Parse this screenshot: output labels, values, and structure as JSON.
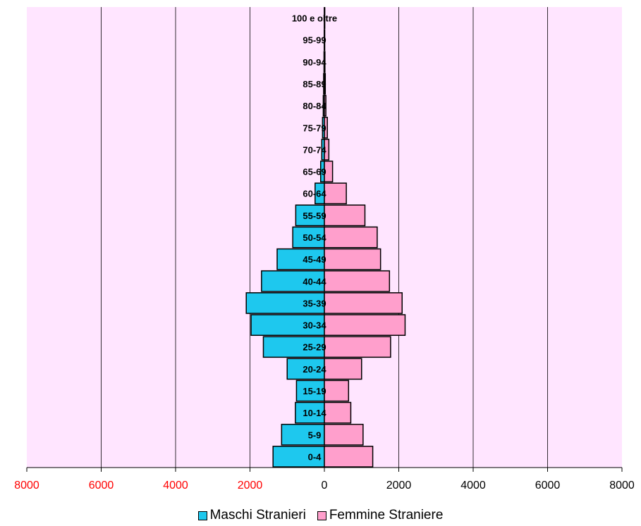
{
  "colors": {
    "plot_bg": "#FFE5FF",
    "male": "#1EC8EE",
    "female": "#FF9FCC",
    "axis_tick_negative": "#FF0000",
    "axis_tick_positive": "#000000",
    "gridline": "#000000"
  },
  "chart_data": {
    "type": "bar",
    "orientation": "horizontal",
    "title": "",
    "xlabel": "",
    "ylabel": "",
    "xlim": [
      -8000,
      8000
    ],
    "x_ticks": [
      -8000,
      -6000,
      -4000,
      -2000,
      0,
      2000,
      4000,
      6000,
      8000
    ],
    "x_tick_labels": [
      "8000",
      "6000",
      "4000",
      "2000",
      "0",
      "2000",
      "4000",
      "6000",
      "8000"
    ],
    "grid": true,
    "legend_position": "bottom",
    "categories": [
      "0-4",
      "5-9",
      "10-14",
      "15-19",
      "20-24",
      "25-29",
      "30-34",
      "35-39",
      "40-44",
      "45-49",
      "50-54",
      "55-59",
      "60-64",
      "65-69",
      "70-74",
      "75-79",
      "80-84",
      "85-89",
      "90-94",
      "95-99",
      "100 e oltre"
    ],
    "series": [
      {
        "name": "Maschi Stranieri",
        "values": [
          1380,
          1150,
          780,
          750,
          1000,
          1640,
          1970,
          2100,
          1690,
          1270,
          850,
          770,
          250,
          100,
          70,
          50,
          30,
          20,
          10,
          5,
          2
        ]
      },
      {
        "name": "Femmine Straniere",
        "values": [
          1300,
          1040,
          710,
          650,
          1000,
          1780,
          2170,
          2090,
          1750,
          1510,
          1420,
          1090,
          590,
          220,
          120,
          80,
          40,
          25,
          15,
          5,
          2
        ]
      }
    ]
  }
}
